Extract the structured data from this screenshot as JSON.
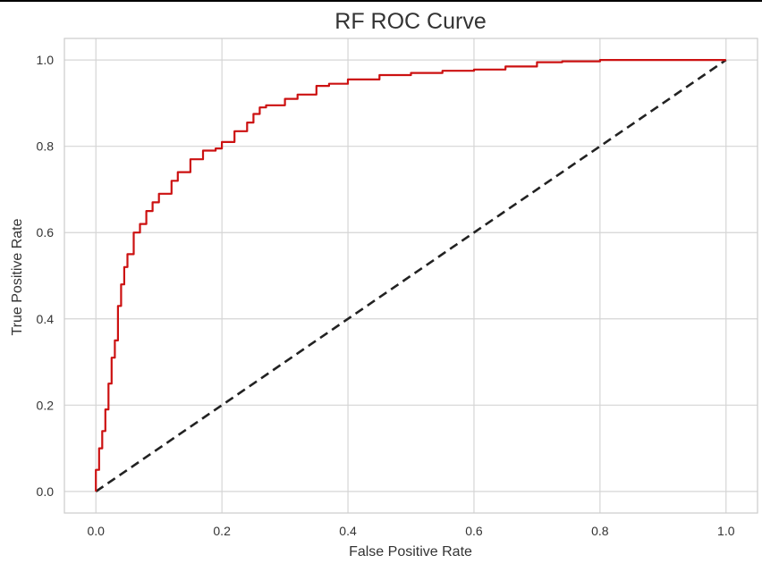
{
  "chart_data": {
    "type": "line",
    "title": "RF ROC Curve",
    "xlabel": "False Positive Rate",
    "ylabel": "True Positive Rate",
    "xlim": [
      -0.05,
      1.05
    ],
    "ylim": [
      -0.05,
      1.05
    ],
    "xticks": [
      "0.0",
      "0.2",
      "0.4",
      "0.6",
      "0.8",
      "1.0"
    ],
    "yticks": [
      "0.0",
      "0.2",
      "0.4",
      "0.6",
      "0.8",
      "1.0"
    ],
    "grid": true,
    "series": [
      {
        "color": "#cc1111",
        "style": "solid",
        "x": [
          0.0,
          0.005,
          0.01,
          0.015,
          0.02,
          0.025,
          0.03,
          0.035,
          0.04,
          0.045,
          0.05,
          0.06,
          0.07,
          0.08,
          0.09,
          0.1,
          0.12,
          0.13,
          0.15,
          0.17,
          0.19,
          0.2,
          0.22,
          0.24,
          0.25,
          0.26,
          0.27,
          0.3,
          0.32,
          0.35,
          0.37,
          0.4,
          0.45,
          0.5,
          0.55,
          0.6,
          0.65,
          0.7,
          0.74,
          0.8,
          0.86,
          0.9,
          0.95,
          1.0
        ],
        "y": [
          0.0,
          0.05,
          0.1,
          0.14,
          0.19,
          0.25,
          0.31,
          0.35,
          0.43,
          0.48,
          0.52,
          0.55,
          0.6,
          0.62,
          0.65,
          0.67,
          0.69,
          0.72,
          0.74,
          0.77,
          0.79,
          0.795,
          0.81,
          0.835,
          0.855,
          0.875,
          0.89,
          0.895,
          0.91,
          0.92,
          0.94,
          0.945,
          0.955,
          0.965,
          0.97,
          0.975,
          0.978,
          0.985,
          0.995,
          0.997,
          1.0,
          1.0,
          1.0,
          1.0
        ]
      },
      {
        "color": "#222222",
        "style": "dashed",
        "x": [
          0.0,
          1.0
        ],
        "y": [
          0.0,
          1.0
        ]
      }
    ]
  }
}
